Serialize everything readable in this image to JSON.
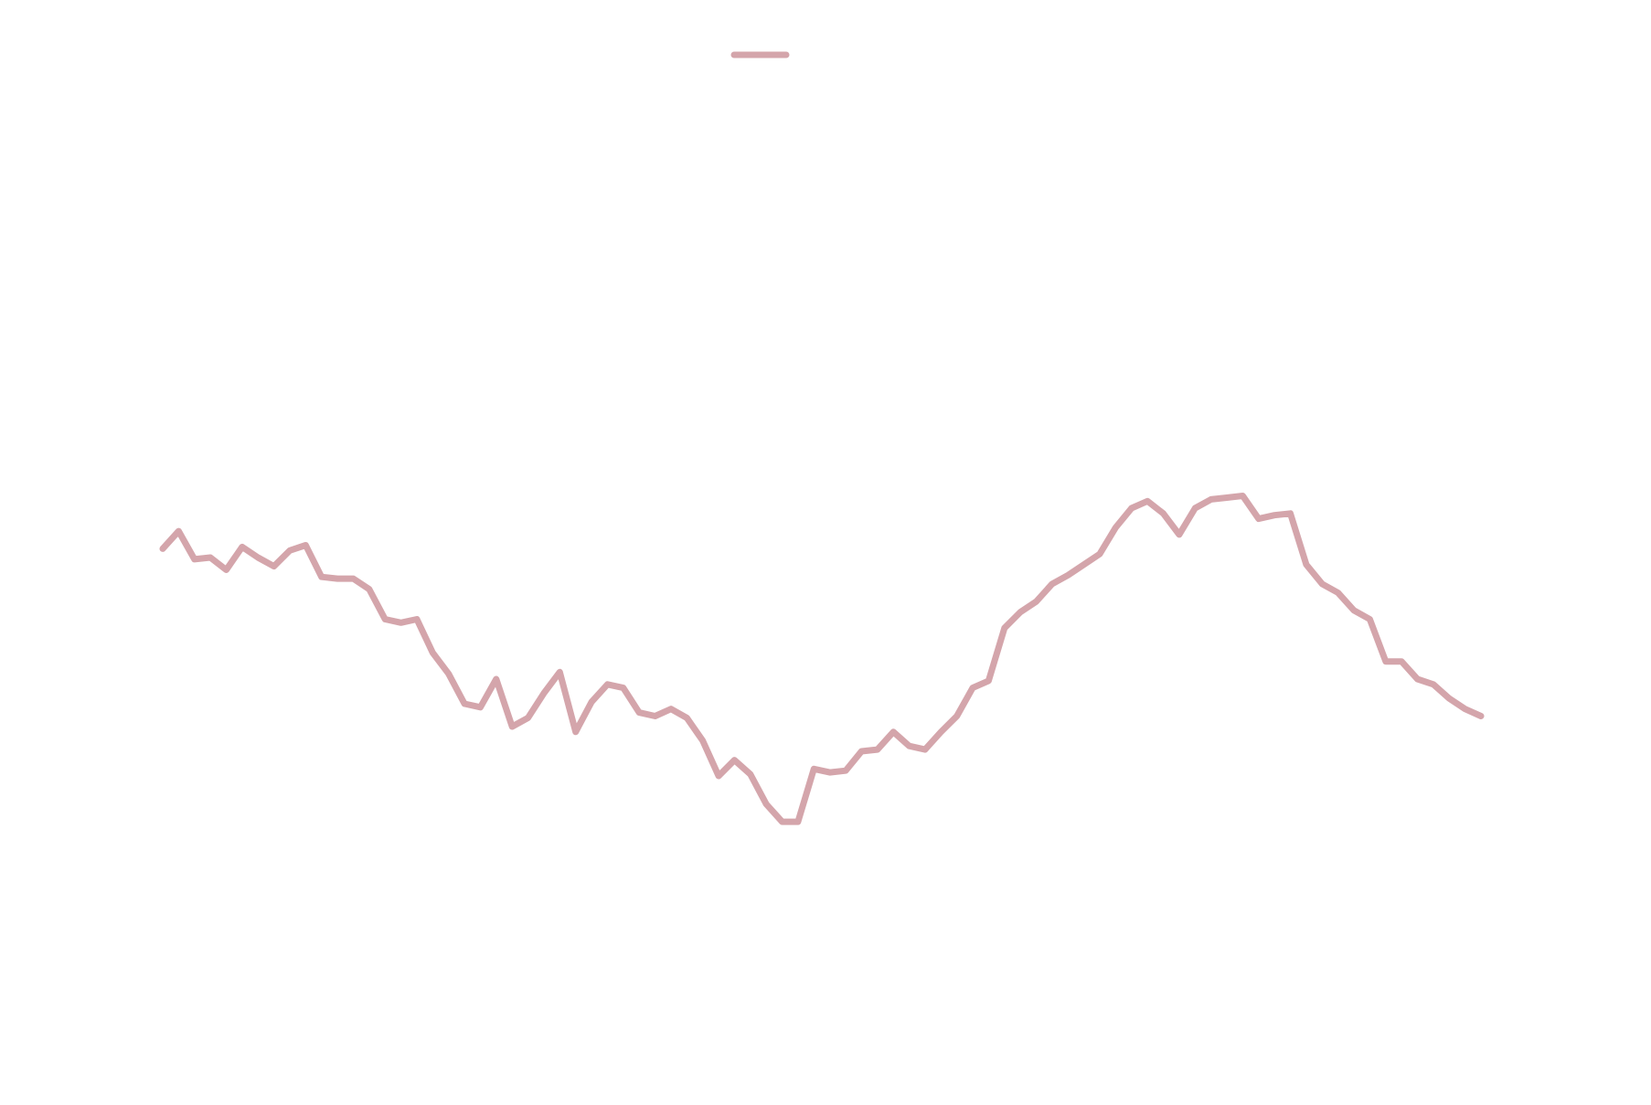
{
  "chart_data": {
    "type": "line",
    "title": "",
    "xlabel": "",
    "ylabel": "",
    "grid": false,
    "axes_visible": false,
    "legend": {
      "placement": "top-center",
      "entries": [
        {
          "label": "",
          "color": "#d4a5ab"
        }
      ]
    },
    "xlim": [
      0,
      249
    ],
    "ylim": [
      -280,
      270
    ],
    "series": [
      {
        "color": "#d4a5ab",
        "x": [
          0,
          3,
          6,
          9,
          12,
          15,
          18,
          21,
          24,
          27,
          30,
          33,
          36,
          39,
          42,
          45,
          48,
          51,
          54,
          57,
          60,
          63,
          66,
          69,
          72,
          75,
          78,
          81,
          84,
          87,
          90,
          93,
          96,
          99,
          102,
          105,
          108,
          111,
          114,
          117,
          120,
          123,
          126,
          129,
          132,
          135,
          138,
          141,
          144,
          147,
          150,
          153,
          156,
          159,
          162,
          165,
          168,
          171,
          174,
          177,
          180,
          183,
          186,
          189,
          192,
          195,
          198,
          201,
          204,
          207,
          210,
          213,
          216,
          219,
          222,
          225,
          228,
          231,
          234,
          237,
          240,
          243,
          246,
          249
        ],
        "y": [
          0,
          10,
          -6,
          -5,
          -12,
          1,
          -5,
          -10,
          -1,
          2,
          -16,
          -17,
          -17,
          -23,
          -40,
          -42,
          -40,
          -59,
          -71,
          -88,
          -90,
          -74,
          -101,
          -96,
          -82,
          -70,
          -104,
          -87,
          -77,
          -79,
          -93,
          -95,
          -91,
          -96,
          -109,
          -129,
          -120,
          -128,
          -145,
          -155,
          -155,
          -125,
          -127,
          -126,
          -115,
          -114,
          -104,
          -112,
          -114,
          -104,
          -95,
          -79,
          -75,
          -45,
          -36,
          -30,
          -20,
          -15,
          -9,
          -3,
          12,
          23,
          27,
          20,
          8,
          23,
          28,
          29,
          30,
          17,
          19,
          20,
          -9,
          -20,
          -25,
          -35,
          -40,
          -64,
          -64,
          -74,
          -77,
          -85,
          -91,
          -95
        ]
      }
    ]
  }
}
